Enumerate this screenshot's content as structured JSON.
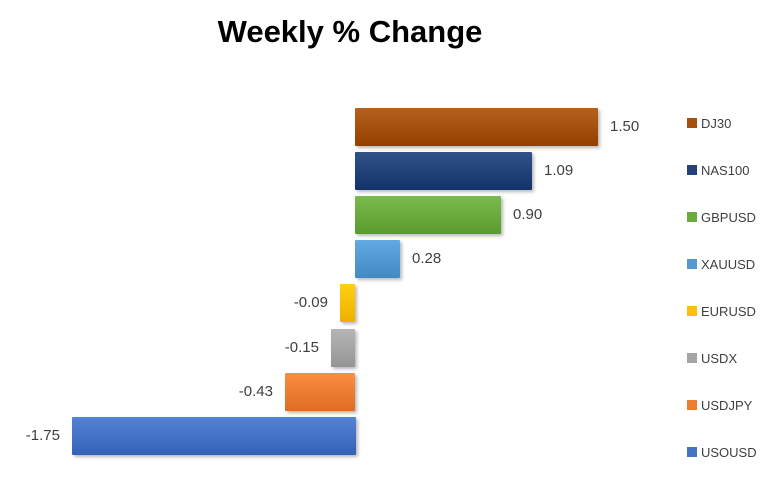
{
  "title": "Weekly % Change",
  "chart_data": {
    "type": "bar",
    "orientation": "horizontal",
    "title": "Weekly % Change",
    "categories": [
      "DJ30",
      "NAS100",
      "GBPUSD",
      "XAUUSD",
      "EURUSD",
      "USDX",
      "USDJPY",
      "USOUSD"
    ],
    "values": [
      1.5,
      1.09,
      0.9,
      0.28,
      -0.09,
      -0.15,
      -0.43,
      -1.75
    ],
    "value_labels": [
      "1.50",
      "1.09",
      "0.90",
      "0.28",
      "-0.09",
      "-0.15",
      "-0.43",
      "-1.75"
    ],
    "colors": [
      "#A6500F",
      "#24427A",
      "#69AC3D",
      "#539AD5",
      "#FFC000",
      "#A5A5A5",
      "#ED7D31",
      "#4472C4"
    ],
    "xlim": [
      -1.75,
      1.5
    ],
    "grid": false,
    "axis_labels_visible": false,
    "legend_position": "right",
    "value_label_color": "#3f3f3f",
    "title_color": "#000000",
    "background_color": "#ffffff"
  }
}
